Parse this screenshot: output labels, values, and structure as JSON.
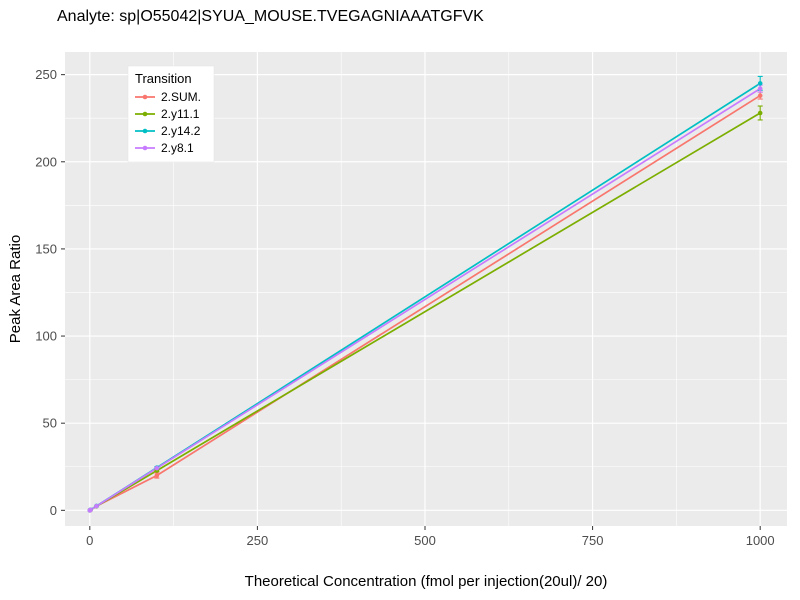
{
  "chart_data": {
    "type": "line",
    "title": "Analyte: sp|O55042|SYUA_MOUSE.TVEGAGNIAAATGFVK",
    "xlabel": "Theoretical Concentration (fmol per injection(20ul)/ 20)",
    "ylabel": "Peak Area Ratio",
    "legend_title": "Transition",
    "legend_position": "top-left-inside",
    "panel_background": "#EBEBEB",
    "grid_color": "#FFFFFF",
    "tick_label_color": "#4D4D4D",
    "grid": true,
    "xlim": [
      -37,
      1040
    ],
    "ylim": [
      -9,
      263
    ],
    "xticks": [
      0,
      250,
      500,
      750,
      1000
    ],
    "yticks": [
      0,
      50,
      100,
      150,
      200,
      250
    ],
    "x": [
      0,
      1,
      10,
      100,
      1000
    ],
    "series": [
      {
        "name": "2.SUM.",
        "color": "#F8766D",
        "values": [
          0,
          0.2,
          2.4,
          20.0,
          238
        ],
        "yerr": [
          0,
          0,
          0,
          1.5,
          2
        ]
      },
      {
        "name": "2.y11.1",
        "color": "#7CAE00",
        "values": [
          0,
          0.2,
          2.3,
          22.8,
          228
        ],
        "yerr": [
          0,
          0,
          0,
          0.5,
          4
        ]
      },
      {
        "name": "2.y14.2",
        "color": "#00BFC4",
        "values": [
          0,
          0.3,
          2.5,
          24.5,
          245
        ],
        "yerr": [
          0,
          0,
          0,
          0.5,
          4
        ]
      },
      {
        "name": "2.y8.1",
        "color": "#C77CFF",
        "values": [
          0,
          0.2,
          2.4,
          24.2,
          242
        ],
        "yerr": [
          0,
          0,
          0,
          0.5,
          2
        ]
      }
    ]
  }
}
